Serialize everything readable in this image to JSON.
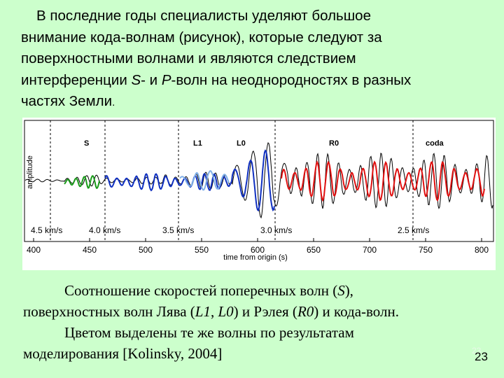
{
  "intro": {
    "lines": [
      [
        "В последние годы специалисты уделяют большое"
      ],
      [
        "внимание кода-волнам (рисунок), которые следуют за"
      ],
      [
        "поверхностными волнами и являются следствием"
      ],
      [
        "интерференции ",
        "S",
        "- и ",
        "P",
        "-волн на неоднородностях в разных"
      ],
      [
        "частях Земли",
        "."
      ]
    ]
  },
  "figure": {
    "y_label": "amplitude",
    "x_label": "time from origin (s)",
    "x_ticks": [
      "400",
      "450",
      "500",
      "550",
      "600",
      "650",
      "700",
      "750",
      "800"
    ],
    "wave_labels": [
      "S",
      "L1",
      "L0",
      "R0",
      "coda"
    ],
    "velocity_labels": [
      "4.5 km/s",
      "4.0 km/s",
      "3.5 km/s",
      "3.0 km/s",
      "2.5 km/s"
    ]
  },
  "caption": {
    "lines": [
      [
        "Соотношение скоростей поперечных волн (",
        "S",
        "),"
      ],
      [
        "поверхностных волн Лява (",
        "L1",
        ", ",
        "L0",
        ") и Рэлея (",
        "R0",
        ") и кода-волн."
      ],
      [
        "Цветом выделены те же волны по результатам"
      ],
      [
        "моделирования [Kolinsky, 2004]"
      ]
    ]
  },
  "page_number": "23"
}
